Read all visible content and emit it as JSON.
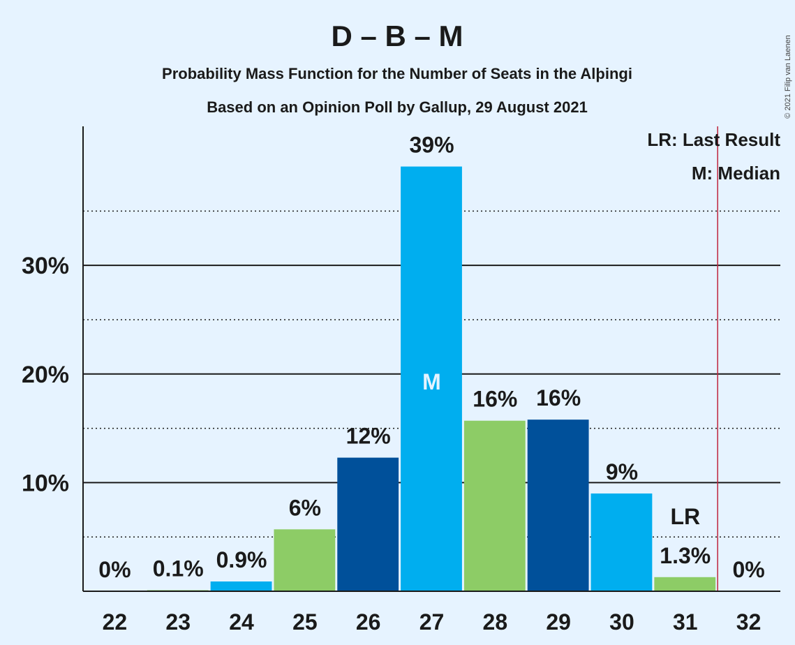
{
  "chart_data": {
    "type": "bar",
    "title": "D – B – M",
    "subtitle_lines": [
      "Probability Mass Function for the Number of Seats in the Alþingi",
      "Based on an Opinion Poll by Gallup, 29 August 2021"
    ],
    "copyright": "© 2021 Filip van Laenen",
    "categories": [
      "22",
      "23",
      "24",
      "25",
      "26",
      "27",
      "28",
      "29",
      "30",
      "31",
      "32"
    ],
    "values": [
      0,
      0.1,
      0.9,
      5.7,
      12.3,
      39.1,
      15.7,
      15.8,
      9.0,
      1.3,
      0
    ],
    "labels": [
      "0%",
      "0.1%",
      "0.9%",
      "6%",
      "12%",
      "39%",
      "16%",
      "16%",
      "9%",
      "1.3%",
      "0%"
    ],
    "bar_colors": [
      "#00aeef",
      "#8dcc66",
      "#00aeef",
      "#8dcc66",
      "#00509a",
      "#00aeef",
      "#8dcc66",
      "#00509a",
      "#00aeef",
      "#8dcc66",
      "#00509a"
    ],
    "ylim": [
      0,
      42.8
    ],
    "yticks": [
      10,
      20,
      30
    ],
    "ytick_labels": [
      "10%",
      "20%",
      "30%"
    ],
    "minor_gridlines": [
      5,
      15,
      25,
      35
    ],
    "median_seat": "27",
    "median_marker": "M",
    "last_result_seat": "31",
    "last_result_marker": "LR",
    "majority_line_after": "31",
    "majority_line_color": "#c0243c",
    "legend": [
      "LR: Last Result",
      "M: Median"
    ],
    "legend_position": "top-right"
  }
}
